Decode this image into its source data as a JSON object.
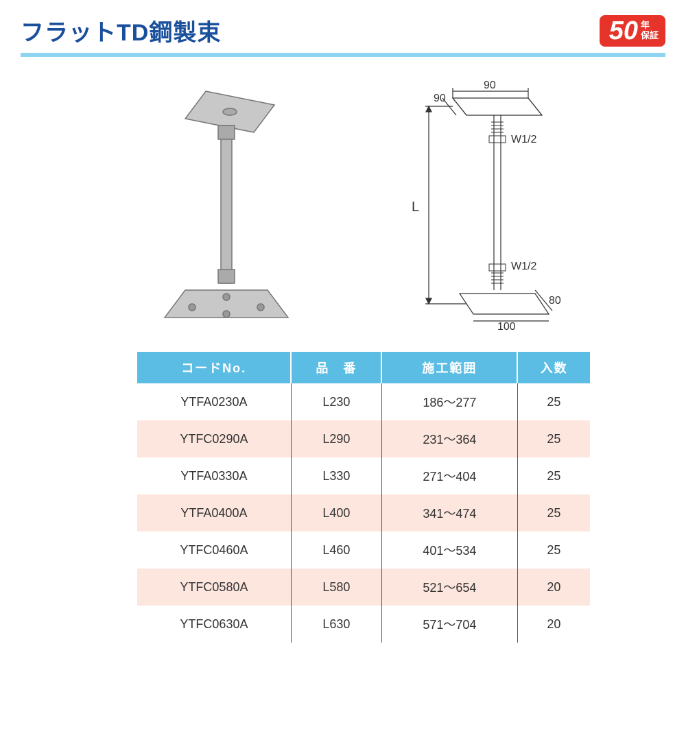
{
  "title": "フラットTD鋼製束",
  "badge": {
    "number": "50",
    "line1": "年",
    "line2": "保証"
  },
  "diagram": {
    "top_w": "90",
    "top_d": "90",
    "thread_top": "W1/2",
    "thread_bot": "W1/2",
    "length_label": "L",
    "base_w": "100",
    "base_d": "80"
  },
  "colors": {
    "title": "#1a4f9c",
    "rule": "#8fd4f0",
    "th_bg": "#5bbde4",
    "alt_bg": "#fde6de",
    "badge_bg": "#e6342a"
  },
  "table": {
    "columns": [
      "コードNo.",
      "品　番",
      "施工範囲",
      "入数"
    ],
    "rows": [
      [
        "YTFA0230A",
        "L230",
        "186～277",
        "25"
      ],
      [
        "YTFC0290A",
        "L290",
        "231～364",
        "25"
      ],
      [
        "YTFA0330A",
        "L330",
        "271～404",
        "25"
      ],
      [
        "YTFA0400A",
        "L400",
        "341～474",
        "25"
      ],
      [
        "YTFC0460A",
        "L460",
        "401～534",
        "25"
      ],
      [
        "YTFC0580A",
        "L580",
        "521～654",
        "20"
      ],
      [
        "YTFC0630A",
        "L630",
        "571～704",
        "20"
      ]
    ]
  }
}
